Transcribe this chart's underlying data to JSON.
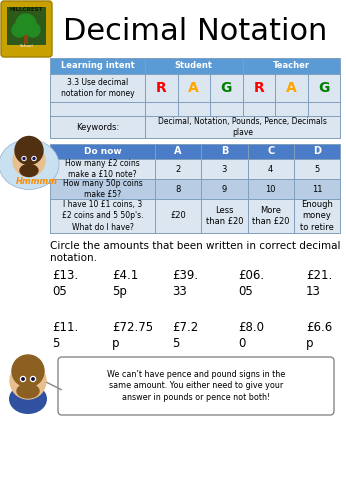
{
  "title": "Decimal Notation",
  "colors": {
    "header_blue": "#5b9bd5",
    "light_blue": "#dce6f1",
    "light_blue2": "#c5d9f1",
    "do_now_header": "#4a7cc7",
    "do_now_light": "#dce6f1",
    "do_now_alt": "#b8cce4",
    "white": "#ffffff",
    "red": "#ff0000",
    "amber": "#ffa500",
    "green": "#008000",
    "black": "#000000",
    "border": "#7f9fbd",
    "shield_green": "#2d5a1b",
    "shield_gold": "#c8a000",
    "bubble_bg": "#f0f0f0"
  },
  "bg_color": "#ffffff",
  "rag_row_text": "3.3 Use decimal\nnotation for money",
  "keywords_text": "Decimal, Notation, Pounds, Pence, Decimals\nplave",
  "do_now_rows": [
    [
      "How many £2 coins\nmake a £10 note?",
      "2",
      "3",
      "4",
      "5"
    ],
    [
      "How many 50p coins\nmake £5?",
      "8",
      "9",
      "10",
      "11"
    ],
    [
      "I have 10 £1 coins, 3\n£2 coins and 5 50p's.\nWhat do I have?",
      "£20",
      "Less\nthan £20",
      "More\nthan £20",
      "Enough\nmoney\nto retire"
    ]
  ],
  "circle_text": "Circle the amounts that been written in correct decimal\nnotation.",
  "amounts_row1": [
    "£13.\n05",
    "£4.1\n5p",
    "£39.\n33",
    "£06.\n05",
    "£21.\n13"
  ],
  "amounts_row2": [
    "£11.\n5",
    "£72.75\np",
    "£7.2\n5",
    "£8.0\n0",
    "£6.6\np"
  ],
  "speech_text": "We can’t have pence and pound signs in the\nsame amount. You either need to give your\nanswer in pounds or pence not both!"
}
